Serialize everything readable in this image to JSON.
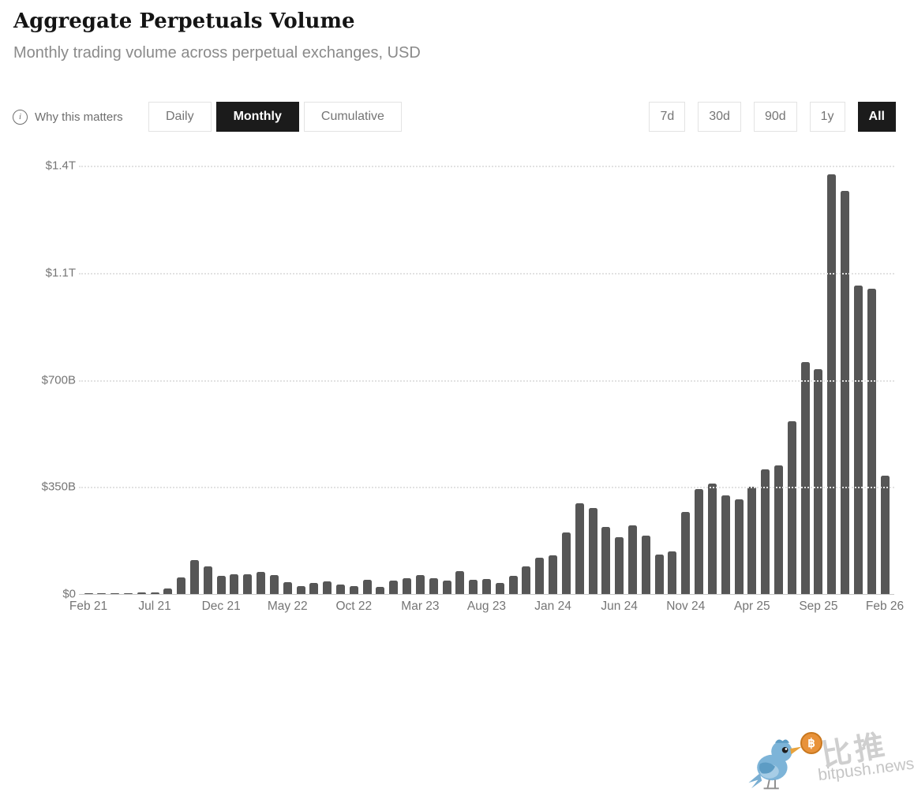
{
  "header": {
    "title": "Aggregate Perpetuals Volume",
    "subtitle": "Monthly trading volume across perpetual exchanges, USD"
  },
  "controls": {
    "why_this_matters": "Why this matters",
    "view_modes": [
      {
        "label": "Daily",
        "active": false
      },
      {
        "label": "Monthly",
        "active": true
      },
      {
        "label": "Cumulative",
        "active": false
      }
    ],
    "ranges": [
      {
        "label": "7d",
        "active": false
      },
      {
        "label": "30d",
        "active": false
      },
      {
        "label": "90d",
        "active": false
      },
      {
        "label": "1y",
        "active": false
      },
      {
        "label": "All",
        "active": true
      }
    ]
  },
  "chart_data": {
    "type": "bar",
    "title": "Aggregate Perpetuals Volume",
    "unit": "billions USD",
    "ylim": [
      0,
      1400
    ],
    "grid": "dotted-horizontal",
    "bar_color": "#565656",
    "y_ticks": [
      {
        "label": "$1.4T",
        "value": 1400
      },
      {
        "label": "$1.1T",
        "value": 1050
      },
      {
        "label": "$700B",
        "value": 700
      },
      {
        "label": "$350B",
        "value": 350
      },
      {
        "label": "$0",
        "value": 0
      }
    ],
    "x_tick_labels": [
      "Feb 21",
      "Jul 21",
      "Dec 21",
      "May 22",
      "Oct 22",
      "Mar 23",
      "Aug 23",
      "Jan 24",
      "Jun 24",
      "Nov 24",
      "Apr 25",
      "Sep 25",
      "Feb 26"
    ],
    "x_tick_every": 5,
    "categories": [
      "Feb 21",
      "Mar 21",
      "Apr 21",
      "May 21",
      "Jun 21",
      "Jul 21",
      "Aug 21",
      "Sep 21",
      "Oct 21",
      "Nov 21",
      "Dec 21",
      "Jan 22",
      "Feb 22",
      "Mar 22",
      "Apr 22",
      "May 22",
      "Jun 22",
      "Jul 22",
      "Aug 22",
      "Sep 22",
      "Oct 22",
      "Nov 22",
      "Dec 22",
      "Jan 23",
      "Feb 23",
      "Mar 23",
      "Apr 23",
      "May 23",
      "Jun 23",
      "Jul 23",
      "Aug 23",
      "Sep 23",
      "Oct 23",
      "Nov 23",
      "Dec 23",
      "Jan 24",
      "Feb 24",
      "Mar 24",
      "Apr 24",
      "May 24",
      "Jun 24",
      "Jul 24",
      "Aug 24",
      "Sep 24",
      "Oct 24",
      "Nov 24",
      "Dec 24",
      "Jan 25",
      "Feb 25",
      "Mar 25",
      "Apr 25",
      "May 25",
      "Jun 25",
      "Jul 25",
      "Aug 25",
      "Sep 25",
      "Oct 25",
      "Nov 25",
      "Dec 25",
      "Jan 26",
      "Feb 26"
    ],
    "values": [
      1,
      2,
      2,
      3,
      4,
      6,
      18,
      54,
      111,
      90,
      59,
      64,
      64,
      72,
      62,
      39,
      26,
      37,
      42,
      30,
      26,
      46,
      23,
      44,
      52,
      62,
      52,
      44,
      75,
      46,
      49,
      36,
      59,
      90,
      119,
      127,
      201,
      297,
      281,
      219,
      186,
      224,
      191,
      129,
      139,
      268,
      343,
      362,
      322,
      310,
      351,
      408,
      420,
      565,
      758,
      735,
      1371,
      1317,
      1008,
      998,
      387
    ]
  },
  "watermark": {
    "cn": "比推",
    "site": "bitpush.news",
    "coin_symbol": "฿"
  }
}
